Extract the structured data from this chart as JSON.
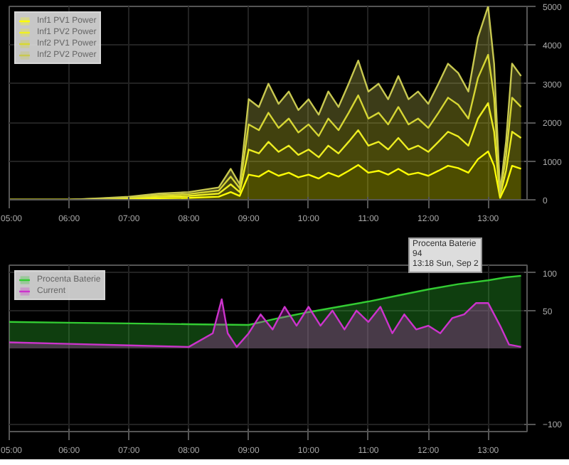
{
  "chart_data": [
    {
      "type": "area",
      "stacked": true,
      "legend": "top left",
      "grid": true,
      "x": [
        5.0,
        5.5,
        6.0,
        6.5,
        7.0,
        7.5,
        8.0,
        8.5,
        8.7,
        8.85,
        9.0,
        9.17,
        9.33,
        9.5,
        9.67,
        9.83,
        10.0,
        10.17,
        10.33,
        10.5,
        10.67,
        10.83,
        11.0,
        11.17,
        11.33,
        11.5,
        11.67,
        11.83,
        12.0,
        12.17,
        12.33,
        12.5,
        12.67,
        12.83,
        13.0,
        13.1,
        13.2,
        13.3,
        13.4,
        13.55
      ],
      "xlim": [
        5.0,
        13.65
      ],
      "xticks": [
        {
          "value": 5,
          "label": "05:00"
        },
        {
          "value": 6,
          "label": "06:00"
        },
        {
          "value": 7,
          "label": "07:00"
        },
        {
          "value": 8,
          "label": "08:00"
        },
        {
          "value": 9,
          "label": "09:00"
        },
        {
          "value": 10,
          "label": "10:00"
        },
        {
          "value": 11,
          "label": "11:00"
        },
        {
          "value": 12,
          "label": "12:00"
        },
        {
          "value": 13,
          "label": "13:00"
        }
      ],
      "ylim": [
        0,
        5000
      ],
      "yticks": [
        0,
        1000,
        2000,
        3000,
        4000,
        5000
      ],
      "series": [
        {
          "name": "Inf1 PV1 Power",
          "color": "#ffff00",
          "values": [
            0,
            0,
            0,
            10,
            20,
            40,
            50,
            80,
            200,
            100,
            650,
            600,
            750,
            620,
            700,
            580,
            650,
            550,
            700,
            600,
            750,
            900,
            700,
            750,
            650,
            800,
            650,
            700,
            620,
            750,
            880,
            820,
            700,
            1050,
            1250,
            880,
            50,
            380,
            880,
            800
          ]
        },
        {
          "name": "Inf1 PV2 Power",
          "color": "#f0f020",
          "values": [
            0,
            0,
            0,
            10,
            20,
            40,
            50,
            80,
            200,
            100,
            650,
            600,
            750,
            620,
            700,
            580,
            650,
            550,
            700,
            600,
            750,
            900,
            700,
            750,
            650,
            800,
            650,
            700,
            620,
            750,
            880,
            820,
            700,
            1050,
            1250,
            880,
            50,
            380,
            880,
            800
          ]
        },
        {
          "name": "Inf2 PV1 Power",
          "color": "#d8d830",
          "values": [
            0,
            0,
            0,
            10,
            20,
            40,
            50,
            80,
            200,
            100,
            650,
            600,
            750,
            620,
            700,
            580,
            650,
            550,
            700,
            600,
            750,
            900,
            700,
            750,
            650,
            800,
            650,
            700,
            620,
            750,
            880,
            820,
            700,
            1050,
            1250,
            880,
            50,
            380,
            880,
            800
          ]
        },
        {
          "name": "Inf2 PV2 Power",
          "color": "#c8c850",
          "values": [
            0,
            0,
            0,
            10,
            20,
            40,
            50,
            80,
            200,
            100,
            650,
            600,
            750,
            620,
            700,
            580,
            650,
            550,
            700,
            600,
            750,
            900,
            700,
            750,
            650,
            800,
            650,
            700,
            620,
            750,
            880,
            820,
            700,
            1050,
            1250,
            880,
            50,
            380,
            880,
            800
          ]
        }
      ]
    },
    {
      "type": "area",
      "legend": "top left",
      "grid": true,
      "xlim": [
        5.0,
        13.65
      ],
      "xticks": [
        {
          "value": 5,
          "label": "05:00"
        },
        {
          "value": 6,
          "label": "06:00"
        },
        {
          "value": 7,
          "label": "07:00"
        },
        {
          "value": 8,
          "label": "08:00"
        },
        {
          "value": 9,
          "label": "09:00"
        },
        {
          "value": 10,
          "label": "10:00"
        },
        {
          "value": 11,
          "label": "11:00"
        },
        {
          "value": 12,
          "label": "12:00"
        },
        {
          "value": 13,
          "label": "13:00"
        }
      ],
      "ylim": [
        -110,
        110
      ],
      "yticks": [
        -100,
        50,
        100
      ],
      "annotations": [
        "Procenta Baterie\n94\n13:18 Sun, Sep 2"
      ],
      "series": [
        {
          "name": "Procenta Baterie",
          "color": "#33cc33",
          "x": [
            5.0,
            6.0,
            7.0,
            8.0,
            9.0,
            9.5,
            10.0,
            10.5,
            11.0,
            11.5,
            12.0,
            12.5,
            13.0,
            13.3,
            13.55
          ],
          "values": [
            35,
            34,
            33,
            32,
            31,
            40,
            48,
            55,
            62,
            70,
            78,
            85,
            90,
            94,
            96
          ]
        },
        {
          "name": "Current",
          "color": "#cc33cc",
          "x": [
            5.0,
            6.0,
            7.0,
            8.0,
            8.4,
            8.55,
            8.65,
            8.8,
            9.0,
            9.2,
            9.4,
            9.6,
            9.8,
            10.0,
            10.2,
            10.4,
            10.6,
            10.8,
            11.0,
            11.2,
            11.4,
            11.6,
            11.8,
            12.0,
            12.2,
            12.4,
            12.6,
            12.8,
            13.0,
            13.2,
            13.35,
            13.55
          ],
          "values": [
            8,
            6,
            4,
            2,
            20,
            65,
            20,
            2,
            20,
            45,
            25,
            55,
            30,
            55,
            30,
            50,
            25,
            50,
            35,
            55,
            20,
            45,
            25,
            30,
            20,
            40,
            45,
            60,
            60,
            30,
            5,
            2
          ]
        }
      ]
    }
  ]
}
